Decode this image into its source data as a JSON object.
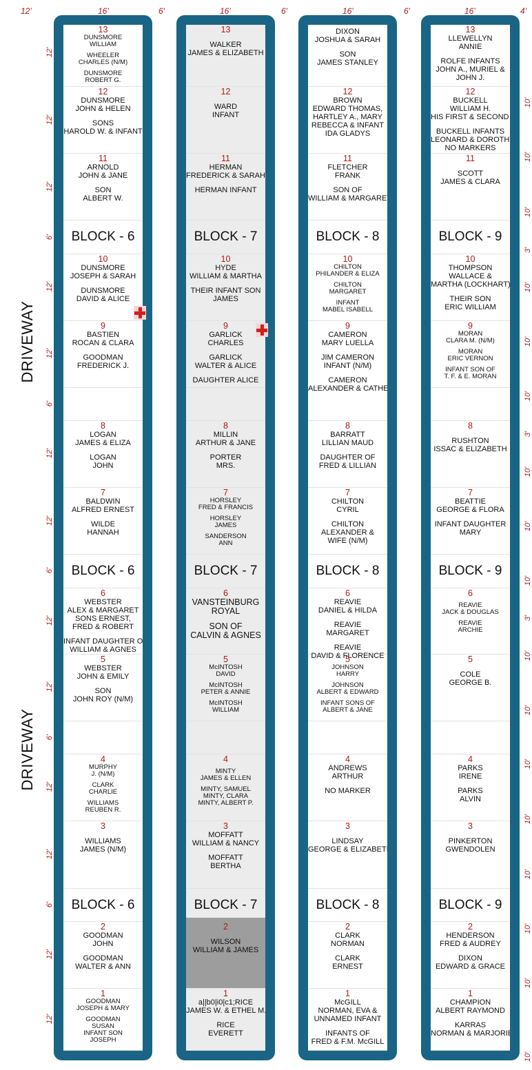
{
  "dimensions": {
    "top": [
      "12'",
      "16'",
      "6'",
      "16'",
      "6'",
      "16'",
      "6'",
      "16'",
      "4'"
    ],
    "left_side": [
      "12'",
      "12'",
      "12'",
      "6'",
      "12'",
      "12'",
      "6'",
      "12'",
      "12'",
      "6'",
      "12'",
      "12'",
      "6'",
      "12'",
      "12'",
      "6'",
      "12'",
      "12'"
    ],
    "right_side": [
      "10'",
      "10'",
      "10'",
      "3'",
      "10'",
      "10'",
      "10'",
      "3'",
      "10'",
      "10'",
      "10'",
      "3'",
      "10'",
      "10'",
      "10'",
      "10'",
      "10'",
      "10'",
      "10'",
      "10'"
    ]
  },
  "driveway_label": "DRIVEWAY",
  "columns": [
    {
      "block": "BLOCK - 6",
      "grey": false,
      "lots": [
        {
          "n": "13",
          "lines": [
            "DUNSMORE",
            "WILLIAM",
            "",
            "WHEELER",
            "CHARLES (N/M)",
            "",
            "DUNSMORE",
            "ROBERT G."
          ],
          "small": true
        },
        {
          "n": "12",
          "lines": [
            "DUNSMORE",
            "JOHN & HELEN",
            "",
            "SONS",
            "HAROLD W. & INFANT"
          ]
        },
        {
          "n": "11",
          "lines": [
            "ARNOLD",
            "JOHN & JANE",
            "",
            "SON",
            "ALBERT W."
          ]
        },
        {
          "n": "10",
          "lines": [
            "DUNSMORE",
            "JOSEPH & SARAH",
            "",
            "DUNSMORE",
            "DAVID & ALICE"
          ]
        },
        {
          "n": "9",
          "lines": [
            "BASTIEN",
            "ROCAN & CLARA",
            "",
            "GOODMAN",
            "FREDERICK J."
          ]
        },
        {
          "n": "",
          "lines": []
        },
        {
          "n": "8",
          "lines": [
            "LOGAN",
            "JAMES & ELIZA",
            "",
            "LOGAN",
            "JOHN"
          ]
        },
        {
          "n": "7",
          "lines": [
            "BALDWIN",
            "ALFRED ERNEST",
            "",
            "WILDE",
            "HANNAH"
          ]
        },
        {
          "n": "6",
          "lines": [
            "WEBSTER",
            "ALEX & MARGARET",
            "SONS ERNEST,",
            "FRED & ROBERT",
            "",
            "INFANT DAUGHTER OF",
            "WILLIAM & AGNES"
          ]
        },
        {
          "n": "5",
          "lines": [
            "WEBSTER",
            "JOHN & EMILY",
            "",
            "SON",
            "JOHN ROY (N/M)"
          ]
        },
        {
          "n": "",
          "lines": []
        },
        {
          "n": "4",
          "lines": [
            "MURPHY",
            "J. (N/M)",
            "",
            "CLARK",
            "CHARLIE",
            "",
            "WILLIAMS",
            "REUBEN R."
          ],
          "small": true
        },
        {
          "n": "3",
          "lines": [
            "",
            "WILLIAMS",
            "JAMES (N/M)"
          ]
        },
        {
          "n": "2",
          "lines": [
            "GOODMAN",
            "JOHN",
            "",
            "GOODMAN",
            "WALTER & ANN"
          ]
        },
        {
          "n": "1",
          "lines": [
            "GOODMAN",
            "JOSEPH & MARY",
            "",
            "GOODMAN",
            "SUSAN",
            "INFANT SON",
            "JOSEPH"
          ],
          "small": true
        }
      ]
    },
    {
      "block": "BLOCK - 7",
      "grey": true,
      "lots": [
        {
          "n": "13",
          "lines": [
            "",
            "WALKER",
            "JAMES & ELIZABETH"
          ]
        },
        {
          "n": "12",
          "lines": [
            "",
            "WARD",
            "INFANT"
          ]
        },
        {
          "n": "11",
          "lines": [
            "HERMAN",
            "FREDERICK & SARAH",
            "",
            "HERMAN INFANT"
          ]
        },
        {
          "n": "10",
          "lines": [
            "HYDE",
            "WILLIAM & MARTHA",
            "",
            "THEIR INFANT SON",
            "JAMES"
          ]
        },
        {
          "n": "9",
          "lines": [
            "GARLICK",
            "CHARLES",
            "",
            "GARLICK",
            "WALTER & ALICE",
            "",
            "DAUGHTER ALICE"
          ]
        },
        {
          "n": "",
          "lines": []
        },
        {
          "n": "8",
          "lines": [
            "MILLIN",
            "ARTHUR & JANE",
            "",
            "PORTER",
            "MRS."
          ]
        },
        {
          "n": "7",
          "lines": [
            "HORSLEY",
            "FRED & FRANCIS",
            "",
            "HORSLEY",
            "JAMES",
            "",
            "SANDERSON",
            "ANN"
          ],
          "small": true
        },
        {
          "n": "6",
          "lines": [
            "VANSTEINBURG",
            "ROYAL",
            "",
            "SON OF",
            "CALVIN & AGNES"
          ],
          "big": true
        },
        {
          "n": "5",
          "lines": [
            "McINTOSH",
            "DAVID",
            "",
            "McINTOSH",
            "PETER & ANNIE",
            "",
            "McINTOSH",
            "WILLIAM"
          ],
          "small": true
        },
        {
          "n": "",
          "lines": []
        },
        {
          "n": "4",
          "lines": [
            "",
            "MINTY",
            "JAMES & ELLEN",
            "",
            "MINTY, SAMUEL",
            "MINTY, CLARA",
            "MINTY, ALBERT P."
          ],
          "small": true
        },
        {
          "n": "3",
          "lines": [
            "MOFFATT",
            "WILLIAM & NANCY",
            "",
            "MOFFATT",
            "BERTHA"
          ]
        },
        {
          "n": "2",
          "lines": [
            "",
            "WILSON",
            "WILLIAM & JAMES"
          ],
          "shaded": true
        },
        {
          "n": "1",
          "lines": [
            "a||b0|i0|c1;RICE",
            "JAMES W. & ETHEL M.",
            "",
            "RICE",
            "EVERETT"
          ]
        }
      ]
    },
    {
      "block": "BLOCK - 8",
      "grey": false,
      "lots": [
        {
          "n": "",
          "lines": [
            "DIXON",
            "JOSHUA & SARAH",
            "",
            "SON",
            "JAMES STANLEY"
          ]
        },
        {
          "n": "12",
          "lines": [
            "BROWN",
            "EDWARD THOMAS,",
            "HARTLEY A., MARY",
            "REBECCA & INFANT",
            "IDA GLADYS"
          ]
        },
        {
          "n": "11",
          "lines": [
            "FLETCHER",
            "FRANK",
            "",
            "SON OF",
            "WILLIAM & MARGARET"
          ]
        },
        {
          "n": "10",
          "lines": [
            "CHILTON",
            "PHILANDER & ELIZA",
            "",
            "CHILTON",
            "MARGARET",
            "",
            "INFANT",
            "MABEL ISABELL"
          ],
          "small": true
        },
        {
          "n": "9",
          "lines": [
            "CAMERON",
            "MARY LUELLA",
            "",
            "JIM CAMERON",
            "INFANT (N/M)",
            "",
            "CAMERON",
            "ALEXANDER & CATHERINE"
          ]
        },
        {
          "n": "",
          "lines": []
        },
        {
          "n": "8",
          "lines": [
            "BARRATT",
            "LILLIAN MAUD",
            "",
            "DAUGHTER OF",
            "FRED & LILLIAN"
          ]
        },
        {
          "n": "7",
          "lines": [
            "CHILTON",
            "CYRIL",
            "",
            "CHILTON",
            "ALEXANDER &",
            "WIFE (N/M)"
          ]
        },
        {
          "n": "6",
          "lines": [
            "REAVIE",
            "DANIEL & HILDA",
            "",
            "REAVIE",
            "MARGARET",
            "",
            "REAVIE",
            "DAVID & FLORENCE"
          ]
        },
        {
          "n": "5",
          "lines": [
            "JOHNSON",
            "HARRY",
            "",
            "JOHNSON",
            "ALBERT & EDWARD",
            "",
            "INFANT SONS OF",
            "ALBERT & JANE"
          ],
          "small": true
        },
        {
          "n": "",
          "lines": []
        },
        {
          "n": "4",
          "lines": [
            "ANDREWS",
            "ARTHUR",
            "",
            "NO MARKER"
          ]
        },
        {
          "n": "3",
          "lines": [
            "",
            "LINDSAY",
            "GEORGE & ELIZABETH"
          ]
        },
        {
          "n": "2",
          "lines": [
            "CLARK",
            "NORMAN",
            "",
            "CLARK",
            "ERNEST"
          ]
        },
        {
          "n": "1",
          "lines": [
            "McGILL",
            "NORMAN, EVA &",
            "UNNAMED INFANT",
            "",
            "INFANTS OF",
            "FRED & F.M. McGILL"
          ]
        }
      ]
    },
    {
      "block": "BLOCK - 9",
      "grey": false,
      "lots": [
        {
          "n": "13",
          "lines": [
            "LLEWELLYN",
            "ANNIE",
            "",
            "ROLFE INFANTS",
            "JOHN A., MURIEL &",
            "JOHN J."
          ]
        },
        {
          "n": "12",
          "lines": [
            "BUCKELL",
            "WILLIAM H.",
            "HIS FIRST & SECOND WIFE",
            "",
            "BUCKELL INFANTS",
            "LEONARD & DOROTHY",
            "NO MARKERS"
          ]
        },
        {
          "n": "11",
          "lines": [
            "",
            "SCOTT",
            "JAMES & CLARA"
          ]
        },
        {
          "n": "10",
          "lines": [
            "THOMPSON",
            "WALLACE &",
            "MARTHA (LOCKHART)",
            "",
            "THEIR SON",
            "ERIC WILLIAM"
          ]
        },
        {
          "n": "9",
          "lines": [
            "MORAN",
            "CLARA M. (N/M)",
            "",
            "MORAN",
            "ERIC VERNON",
            "",
            "INFANT SON OF",
            "T. F. & E. MORAN"
          ],
          "small": true
        },
        {
          "n": "",
          "lines": []
        },
        {
          "n": "8",
          "lines": [
            "",
            "RUSHTON",
            "ISSAC & ELIZABETH"
          ]
        },
        {
          "n": "7",
          "lines": [
            "BEATTIE",
            "GEORGE & FLORA",
            "",
            "INFANT DAUGHTER",
            "MARY"
          ]
        },
        {
          "n": "6",
          "lines": [
            "",
            "REAVIE",
            "JACK & DOUGLAS",
            "",
            "REAVIE",
            "ARCHIE"
          ],
          "small": true
        },
        {
          "n": "5",
          "lines": [
            "",
            "COLE",
            "GEORGE B."
          ]
        },
        {
          "n": "",
          "lines": []
        },
        {
          "n": "4",
          "lines": [
            "PARKS",
            "IRENE",
            "",
            "PARKS",
            "ALVIN"
          ]
        },
        {
          "n": "3",
          "lines": [
            "",
            "PINKERTON",
            "GWENDOLEN"
          ]
        },
        {
          "n": "2",
          "lines": [
            "HENDERSON",
            "FRED & AUDREY",
            "",
            "DIXON",
            "EDWARD & GRACE"
          ]
        },
        {
          "n": "1",
          "lines": [
            "CHAMPION",
            "ALBERT RAYMOND",
            "",
            "KARRAS",
            "NORMAN & MARJORIE"
          ]
        }
      ]
    }
  ]
}
